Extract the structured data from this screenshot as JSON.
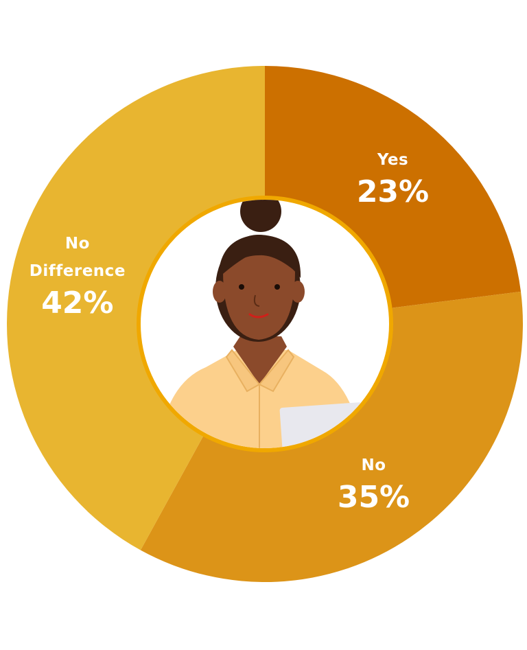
{
  "chart_data": {
    "type": "donut",
    "categories": [
      "Yes",
      "No",
      "No Difference"
    ],
    "values": [
      23,
      35,
      42
    ],
    "value_labels": [
      "23%",
      "35%",
      "42%"
    ],
    "colors": [
      "#cc7000",
      "#dc9418",
      "#e8b530"
    ]
  }
}
